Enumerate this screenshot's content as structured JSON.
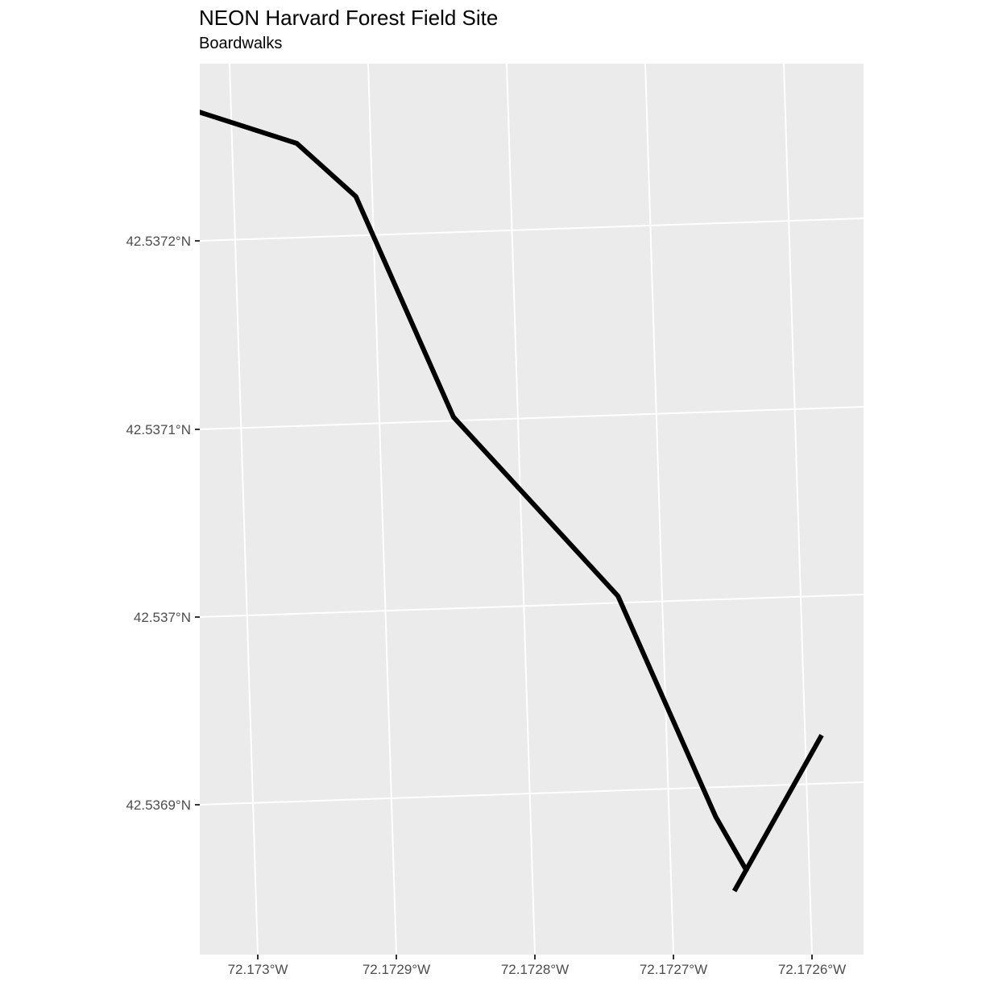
{
  "title": "NEON Harvard Forest Field Site",
  "subtitle": "Boardwalks",
  "colors": {
    "panel_background": "#ebebeb",
    "gridline": "#ffffff",
    "line": "#000000",
    "tick_label": "#4d4d4d"
  },
  "axes": {
    "x_ticks": [
      "72.173°W",
      "72.1729°W",
      "72.1728°W",
      "72.1727°W",
      "72.1726°W"
    ],
    "y_ticks": [
      "42.5372°N",
      "42.5371°N",
      "42.537°N",
      "42.5369°N"
    ]
  },
  "boardwalk_lines": [
    {
      "points_lon_lat": [
        [
          -72.17302,
          42.53727
        ],
        [
          -72.17295,
          42.53725
        ],
        [
          -72.17291,
          42.53722
        ],
        [
          -72.17285,
          42.5371
        ],
        [
          -72.17274,
          42.537
        ],
        [
          -72.17268,
          42.53688
        ],
        [
          -72.17266,
          42.53685
        ]
      ]
    },
    {
      "points_lon_lat": [
        [
          -72.17267,
          42.53684
        ],
        [
          -72.1726,
          42.53692
        ]
      ]
    }
  ]
}
